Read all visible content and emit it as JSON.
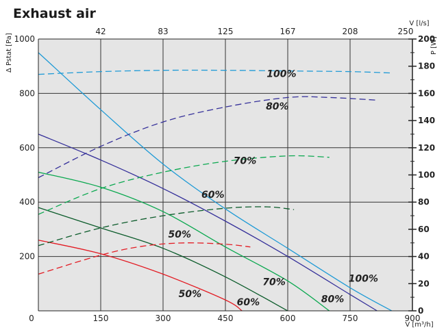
{
  "chart_data": {
    "type": "line",
    "title": "Exhaust air",
    "xlabel": "V [m³/h]",
    "ylabel_left": "Δ Pstat [Pa]",
    "ylabel_right": "P [W]",
    "x2label": "V [l/s]",
    "xlim": [
      0,
      900
    ],
    "ylim_left": [
      0,
      1000
    ],
    "ylim_right": [
      0,
      200
    ],
    "x_ticks": [
      "0",
      "150",
      "300",
      "450",
      "600",
      "750",
      "900"
    ],
    "x2_ticks": [
      "42",
      "83",
      "125",
      "167",
      "208",
      "250"
    ],
    "y_left_ticks": [
      "200",
      "400",
      "600",
      "800",
      "1000"
    ],
    "y_right_ticks": [
      "0",
      "20",
      "40",
      "60",
      "80",
      "100",
      "120",
      "140",
      "160",
      "180",
      "200"
    ],
    "grid": true,
    "colors": {
      "100%": "#1e9ad6",
      "80%": "#35309a",
      "70%": "#0aa84f",
      "60%": "#0b5b2a",
      "50%": "#e31b23",
      "background": "#e5e5e5"
    },
    "series": [
      {
        "name": "100%",
        "kind": "pressure",
        "axis": "left",
        "x": [
          0,
          150,
          300,
          450,
          600,
          750,
          850
        ],
        "y": [
          950,
          740,
          540,
          375,
          230,
          85,
          0
        ]
      },
      {
        "name": "80%",
        "kind": "pressure",
        "axis": "left",
        "x": [
          0,
          150,
          300,
          450,
          600,
          750,
          815
        ],
        "y": [
          650,
          555,
          450,
          330,
          200,
          60,
          0
        ]
      },
      {
        "name": "70%",
        "kind": "pressure",
        "axis": "left",
        "x": [
          0,
          150,
          300,
          450,
          600,
          700
        ],
        "y": [
          510,
          455,
          365,
          235,
          110,
          0
        ]
      },
      {
        "name": "60%",
        "kind": "pressure",
        "axis": "left",
        "x": [
          0,
          150,
          300,
          450,
          600
        ],
        "y": [
          380,
          305,
          230,
          125,
          0
        ]
      },
      {
        "name": "50%",
        "kind": "pressure",
        "axis": "left",
        "x": [
          0,
          150,
          300,
          450,
          490
        ],
        "y": [
          260,
          210,
          135,
          40,
          0
        ]
      },
      {
        "name": "100%",
        "kind": "power",
        "axis": "right",
        "x": [
          0,
          150,
          300,
          450,
          600,
          750,
          850
        ],
        "y": [
          174,
          176,
          177,
          177,
          176.5,
          176,
          175
        ]
      },
      {
        "name": "80%",
        "kind": "power",
        "axis": "right",
        "x": [
          0,
          150,
          300,
          450,
          600,
          700,
          815
        ],
        "y": [
          98,
          121,
          139,
          150,
          157,
          157,
          155
        ]
      },
      {
        "name": "70%",
        "kind": "power",
        "axis": "right",
        "x": [
          0,
          150,
          300,
          450,
          600,
          700
        ],
        "y": [
          71,
          90,
          102,
          110,
          114,
          113
        ]
      },
      {
        "name": "60%",
        "kind": "power",
        "axis": "right",
        "x": [
          0,
          150,
          300,
          450,
          550,
          615
        ],
        "y": [
          48,
          61,
          70,
          75.5,
          76.5,
          74.5
        ]
      },
      {
        "name": "50%",
        "kind": "power",
        "axis": "right",
        "x": [
          0,
          150,
          250,
          350,
          450,
          510
        ],
        "y": [
          27,
          41,
          47.5,
          50,
          49,
          47
        ]
      }
    ],
    "annotations": [
      {
        "text": "100%",
        "x": 585,
        "y": 172,
        "axis": "right"
      },
      {
        "text": "80%",
        "x": 575,
        "y": 148,
        "axis": "right"
      },
      {
        "text": "70%",
        "x": 497,
        "y": 108,
        "axis": "right"
      },
      {
        "text": "60%",
        "x": 420,
        "y": 83,
        "axis": "right"
      },
      {
        "text": "50%",
        "x": 340,
        "y": 54,
        "axis": "right"
      },
      {
        "text": "100%",
        "x": 782,
        "y": 107,
        "axis": "left"
      },
      {
        "text": "80%",
        "x": 708,
        "y": 32,
        "axis": "left"
      },
      {
        "text": "70%",
        "x": 567,
        "y": 95,
        "axis": "left"
      },
      {
        "text": "60%",
        "x": 505,
        "y": 20,
        "axis": "left"
      },
      {
        "text": "50%",
        "x": 365,
        "y": 50,
        "axis": "left"
      }
    ]
  }
}
